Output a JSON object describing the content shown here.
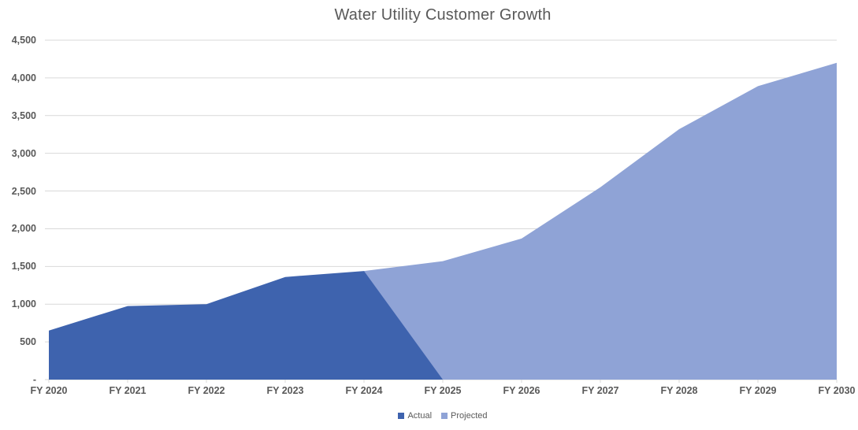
{
  "title": "Water Utility Customer Growth",
  "colors": {
    "background": "#FFFFFF",
    "gridline": "#D9D9D9",
    "axis_line": "#D9D9D9",
    "axis_text": "#595959",
    "title_text": "#595959",
    "actual": "#3E63AE",
    "projected": "#8FA3D6"
  },
  "chart_data": {
    "type": "area",
    "title": "Water Utility Customer Growth",
    "categories": [
      "FY 2020",
      "FY 2021",
      "FY 2022",
      "FY 2023",
      "FY 2024",
      "FY 2025",
      "FY 2026",
      "FY 2027",
      "FY 2028",
      "FY 2029",
      "FY 2030"
    ],
    "series": [
      {
        "name": "Actual",
        "color": "#3E63AE",
        "values": [
          650,
          975,
          1000,
          1360,
          1440,
          0,
          null,
          null,
          null,
          null,
          null
        ]
      },
      {
        "name": "Projected",
        "color": "#8FA3D6",
        "values": [
          null,
          null,
          null,
          null,
          1440,
          1570,
          1870,
          2550,
          3320,
          3890,
          4200
        ]
      }
    ],
    "xlabel": "",
    "ylabel": "",
    "ylim": [
      0,
      4500
    ],
    "y_tick_interval": 500,
    "y_axis_labels": [
      "-",
      "500",
      "1,000",
      "1,500",
      "2,000",
      "2,500",
      "3,000",
      "3,500",
      "4,000",
      "4,500"
    ],
    "grid": true,
    "legend_position": "bottom"
  }
}
